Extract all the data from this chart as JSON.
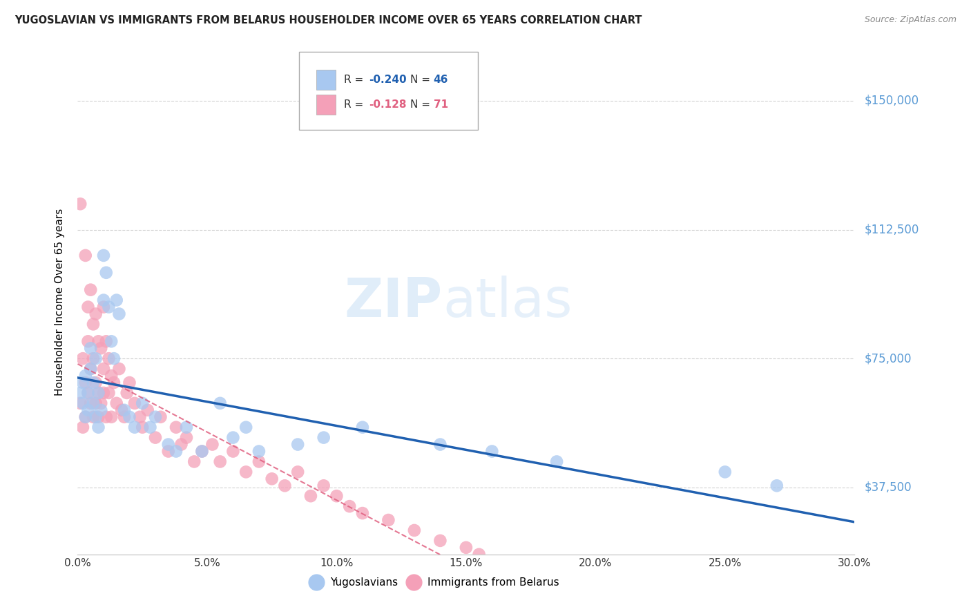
{
  "title": "YUGOSLAVIAN VS IMMIGRANTS FROM BELARUS HOUSEHOLDER INCOME OVER 65 YEARS CORRELATION CHART",
  "source": "Source: ZipAtlas.com",
  "ylabel": "Householder Income Over 65 years",
  "xlabel_ticks": [
    "0.0%",
    "5.0%",
    "10.0%",
    "15.0%",
    "20.0%",
    "25.0%",
    "30.0%"
  ],
  "ytick_labels": [
    "$37,500",
    "$75,000",
    "$112,500",
    "$150,000"
  ],
  "ytick_values": [
    37500,
    75000,
    112500,
    150000
  ],
  "xlim": [
    0.0,
    0.3
  ],
  "ylim": [
    18000,
    165000
  ],
  "blue_R": "-0.240",
  "blue_N": "46",
  "pink_R": "-0.128",
  "pink_N": "71",
  "blue_color": "#a8c8f0",
  "pink_color": "#f4a0b8",
  "blue_line_color": "#2060b0",
  "pink_line_color": "#e06080",
  "watermark_color": "#c8dff5",
  "blue_scatter_x": [
    0.001,
    0.002,
    0.002,
    0.003,
    0.003,
    0.004,
    0.004,
    0.005,
    0.005,
    0.006,
    0.006,
    0.007,
    0.007,
    0.008,
    0.008,
    0.009,
    0.01,
    0.01,
    0.011,
    0.012,
    0.013,
    0.014,
    0.015,
    0.016,
    0.018,
    0.02,
    0.022,
    0.025,
    0.028,
    0.03,
    0.035,
    0.038,
    0.042,
    0.048,
    0.055,
    0.06,
    0.065,
    0.07,
    0.085,
    0.095,
    0.11,
    0.14,
    0.16,
    0.185,
    0.25,
    0.27
  ],
  "blue_scatter_y": [
    65000,
    62000,
    68000,
    70000,
    58000,
    65000,
    60000,
    72000,
    78000,
    68000,
    62000,
    75000,
    58000,
    65000,
    55000,
    60000,
    105000,
    92000,
    100000,
    90000,
    80000,
    75000,
    92000,
    88000,
    60000,
    58000,
    55000,
    62000,
    55000,
    58000,
    50000,
    48000,
    55000,
    48000,
    62000,
    52000,
    55000,
    48000,
    50000,
    52000,
    55000,
    50000,
    48000,
    45000,
    42000,
    38000
  ],
  "pink_scatter_x": [
    0.001,
    0.001,
    0.002,
    0.002,
    0.003,
    0.003,
    0.003,
    0.004,
    0.004,
    0.004,
    0.005,
    0.005,
    0.005,
    0.006,
    0.006,
    0.006,
    0.007,
    0.007,
    0.007,
    0.008,
    0.008,
    0.008,
    0.009,
    0.009,
    0.01,
    0.01,
    0.01,
    0.011,
    0.011,
    0.012,
    0.012,
    0.013,
    0.013,
    0.014,
    0.015,
    0.016,
    0.017,
    0.018,
    0.019,
    0.02,
    0.022,
    0.024,
    0.025,
    0.027,
    0.03,
    0.032,
    0.035,
    0.038,
    0.04,
    0.042,
    0.045,
    0.048,
    0.052,
    0.055,
    0.06,
    0.065,
    0.07,
    0.075,
    0.08,
    0.085,
    0.09,
    0.095,
    0.1,
    0.105,
    0.11,
    0.12,
    0.13,
    0.14,
    0.15,
    0.155,
    0.16
  ],
  "pink_scatter_y": [
    120000,
    62000,
    75000,
    55000,
    68000,
    105000,
    58000,
    80000,
    90000,
    65000,
    72000,
    95000,
    62000,
    85000,
    75000,
    58000,
    88000,
    68000,
    62000,
    80000,
    65000,
    58000,
    78000,
    62000,
    90000,
    72000,
    65000,
    80000,
    58000,
    75000,
    65000,
    70000,
    58000,
    68000,
    62000,
    72000,
    60000,
    58000,
    65000,
    68000,
    62000,
    58000,
    55000,
    60000,
    52000,
    58000,
    48000,
    55000,
    50000,
    52000,
    45000,
    48000,
    50000,
    45000,
    48000,
    42000,
    45000,
    40000,
    38000,
    42000,
    35000,
    38000,
    35000,
    32000,
    30000,
    28000,
    25000,
    22000,
    20000,
    18000,
    15000
  ]
}
